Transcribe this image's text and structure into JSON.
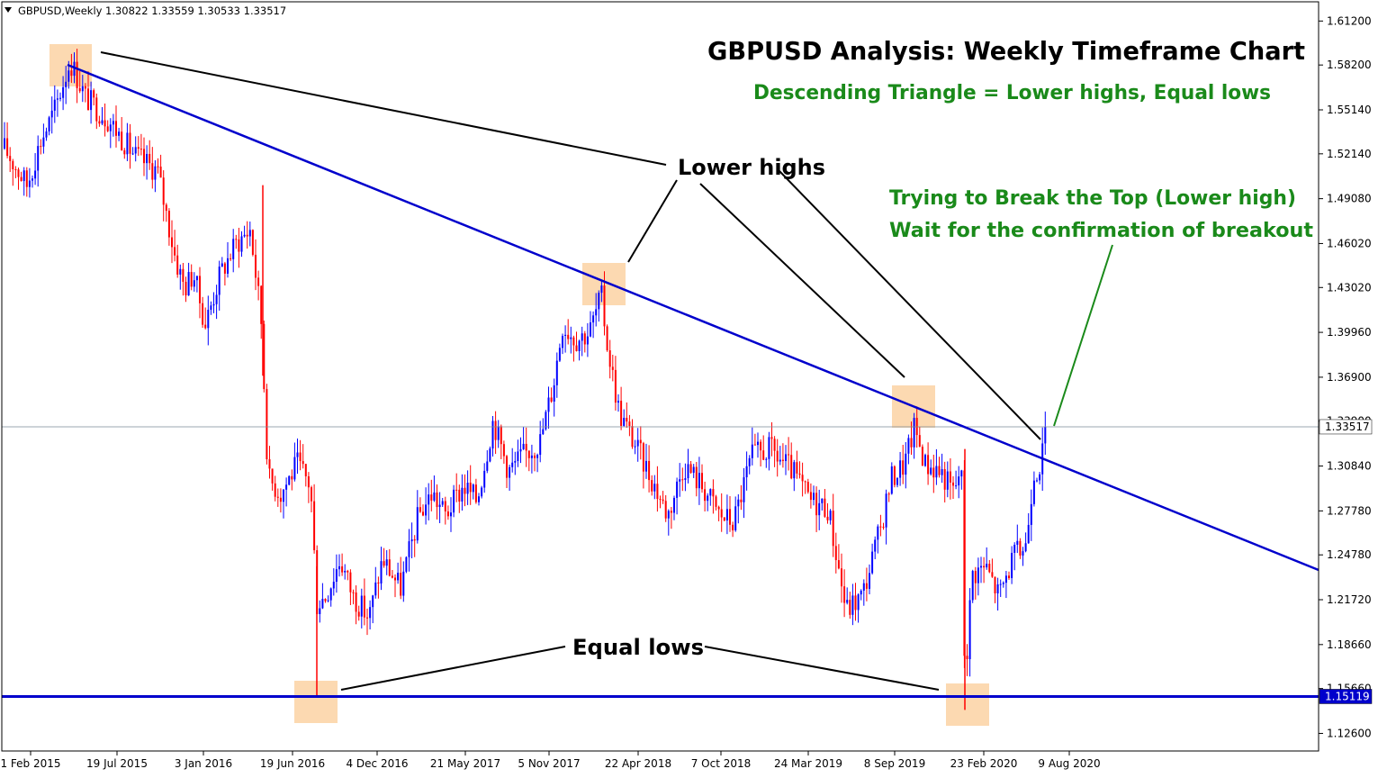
{
  "header": {
    "symbol_timeframe": "GBPUSD,Weekly",
    "ohlc": "1.30822 1.33559 1.30533 1.33517",
    "dropdown_icon": "triangle-down-icon"
  },
  "title": "GBPUSD Analysis: Weekly Timeframe Chart",
  "subtitle": "Descending Triangle = Lower highs, Equal lows",
  "annotations": {
    "lower_highs": "Lower highs",
    "equal_lows": "Equal lows",
    "breakout_line1": "Trying to Break the Top (Lower high)",
    "breakout_line2": "Wait for the confirmation of breakout"
  },
  "colors": {
    "bull": "#0000ff",
    "bear": "#ff0000",
    "trendline": "#0000cc",
    "highlight": "#fcd5a8",
    "annotation_green": "#1a8a1a",
    "text": "#000000",
    "axis": "#000000"
  },
  "chart_data": {
    "type": "candlestick",
    "title": "GBPUSD Analysis: Weekly Timeframe Chart",
    "subtitle": "Descending Triangle = Lower highs, Equal lows",
    "x_tick_labels": [
      "1 Feb 2015",
      "19 Jul 2015",
      "3 Jan 2016",
      "19 Jun 2016",
      "4 Dec 2016",
      "21 May 2017",
      "5 Nov 2017",
      "22 Apr 2018",
      "7 Oct 2018",
      "24 Mar 2019",
      "8 Sep 2019",
      "23 Feb 2020",
      "9 Aug 2020"
    ],
    "y_tick_labels": [
      "1.61200",
      "1.58200",
      "1.55140",
      "1.52140",
      "1.49080",
      "1.46020",
      "1.43020",
      "1.39960",
      "1.36900",
      "1.33900",
      "1.30840",
      "1.27780",
      "1.24780",
      "1.21720",
      "1.18660",
      "1.15660",
      "1.12600"
    ],
    "ylim": [
      1.114,
      1.6245
    ],
    "current_price": "1.33517",
    "support_level": "1.15119",
    "support_value": 1.15119,
    "resistance_trendline": {
      "from": [
        "1 Feb 2015",
        1.59
      ],
      "to_value_at_right_edge": 1.24
    }
  }
}
